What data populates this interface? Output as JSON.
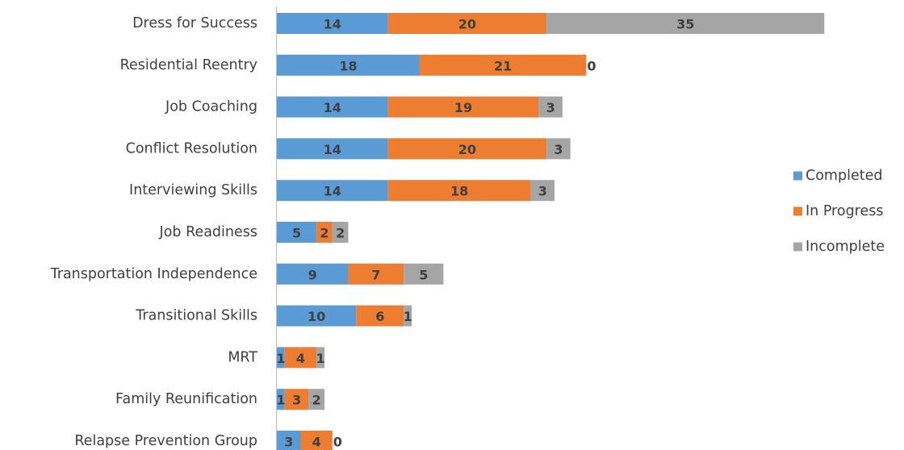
{
  "chart_data": {
    "type": "bar",
    "orientation": "horizontal",
    "stacked": true,
    "title": "",
    "xlabel": "",
    "ylabel": "",
    "categories": [
      "Dress for Success",
      "Residential Reentry",
      "Job Coaching",
      "Conflict Resolution",
      "Interviewing Skills",
      "Job Readiness",
      "Transportation Independence",
      "Transitional Skills",
      "MRT",
      "Family Reunification",
      "Relapse Prevention Group"
    ],
    "series": [
      {
        "name": "Completed",
        "color": "#5b9bd5",
        "values": [
          14,
          18,
          14,
          14,
          14,
          5,
          9,
          10,
          1,
          1,
          3
        ]
      },
      {
        "name": "In Progress",
        "color": "#ed7d31",
        "values": [
          20,
          21,
          19,
          20,
          18,
          2,
          7,
          6,
          4,
          3,
          4
        ]
      },
      {
        "name": "Incomplete",
        "color": "#a5a5a5",
        "values": [
          35,
          0,
          3,
          3,
          3,
          2,
          5,
          1,
          1,
          2,
          0
        ]
      }
    ],
    "xlim": [
      0,
      70
    ],
    "grid": false,
    "x_axis_visible": false,
    "data_labels": true,
    "legend_position": "right"
  }
}
